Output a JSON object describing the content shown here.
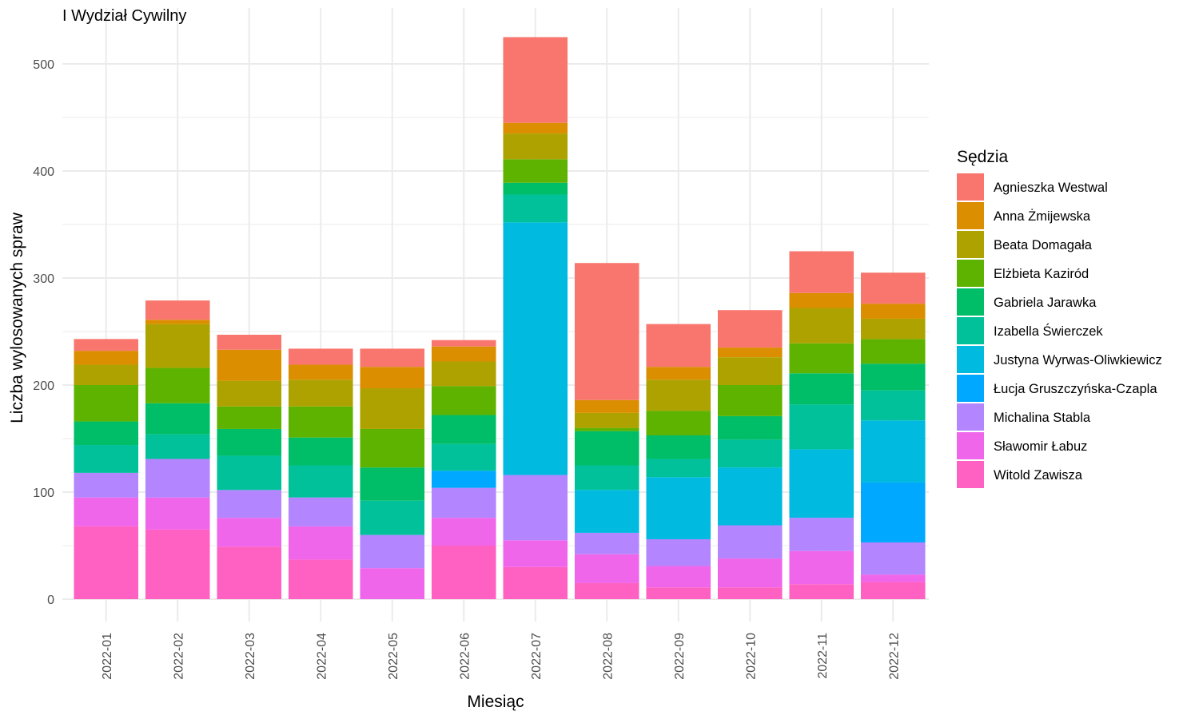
{
  "chart_data": {
    "type": "bar",
    "stacked": true,
    "title": "I Wydział Cywilny",
    "xlabel": "Miesiąc",
    "ylabel": "Liczba wylosowanych spraw",
    "ylim": [
      0,
      525
    ],
    "yticks": [
      0,
      100,
      200,
      300,
      400,
      500
    ],
    "grid": true,
    "legend_title": "Sędzia",
    "legend_position": "right",
    "categories": [
      "2022-01",
      "2022-02",
      "2022-03",
      "2022-04",
      "2022-05",
      "2022-06",
      "2022-07",
      "2022-08",
      "2022-09",
      "2022-10",
      "2022-11",
      "2022-12"
    ],
    "series": [
      {
        "name": "Witold Zawisza",
        "color": "#FF61C3",
        "values": [
          68,
          65,
          49,
          37,
          0,
          50,
          30,
          15,
          11,
          11,
          14,
          16
        ]
      },
      {
        "name": "Sławomir Łabuz",
        "color": "#F066EA",
        "values": [
          27,
          30,
          27,
          31,
          29,
          26,
          25,
          27,
          20,
          27,
          31,
          7
        ]
      },
      {
        "name": "Michalina Stabla",
        "color": "#B385FF",
        "values": [
          23,
          36,
          26,
          27,
          31,
          28,
          61,
          20,
          25,
          31,
          31,
          30
        ]
      },
      {
        "name": "Łucja Gruszczyńska-Czapla",
        "color": "#00A9FF",
        "values": [
          0,
          0,
          0,
          0,
          0,
          16,
          0,
          0,
          0,
          0,
          0,
          56
        ]
      },
      {
        "name": "Justyna Wyrwas-Oliwkiewicz",
        "color": "#00BAE0",
        "values": [
          0,
          0,
          0,
          0,
          0,
          0,
          236,
          40,
          58,
          54,
          64,
          58
        ]
      },
      {
        "name": "Izabella Świerczek",
        "color": "#00C19A",
        "values": [
          26,
          23,
          32,
          30,
          32,
          25,
          26,
          23,
          17,
          26,
          42,
          28
        ]
      },
      {
        "name": "Gabriela Jarawka",
        "color": "#00BE67",
        "values": [
          22,
          29,
          25,
          26,
          31,
          27,
          11,
          32,
          22,
          22,
          29,
          25
        ]
      },
      {
        "name": "Elżbieta Kaziród",
        "color": "#5EB300",
        "values": [
          34,
          33,
          21,
          29,
          36,
          27,
          22,
          3,
          23,
          29,
          28,
          23
        ]
      },
      {
        "name": "Beata Domagała",
        "color": "#AEA200",
        "values": [
          19,
          41,
          24,
          25,
          38,
          23,
          24,
          14,
          29,
          26,
          33,
          19
        ]
      },
      {
        "name": "Anna Żmijewska",
        "color": "#DB8E00",
        "values": [
          13,
          4,
          29,
          14,
          20,
          14,
          10,
          12,
          12,
          9,
          14,
          14
        ]
      },
      {
        "name": "Agnieszka Westwal",
        "color": "#F8766D",
        "values": [
          11,
          18,
          14,
          15,
          17,
          6,
          80,
          128,
          40,
          35,
          39,
          29
        ]
      }
    ],
    "legend_order": [
      "Agnieszka Westwal",
      "Anna Żmijewska",
      "Beata Domagała",
      "Elżbieta Kaziród",
      "Gabriela Jarawka",
      "Izabella Świerczek",
      "Justyna Wyrwas-Oliwkiewicz",
      "Łucja Gruszczyńska-Czapla",
      "Michalina Stabla",
      "Sławomir Łabuz",
      "Witold Zawisza"
    ]
  }
}
